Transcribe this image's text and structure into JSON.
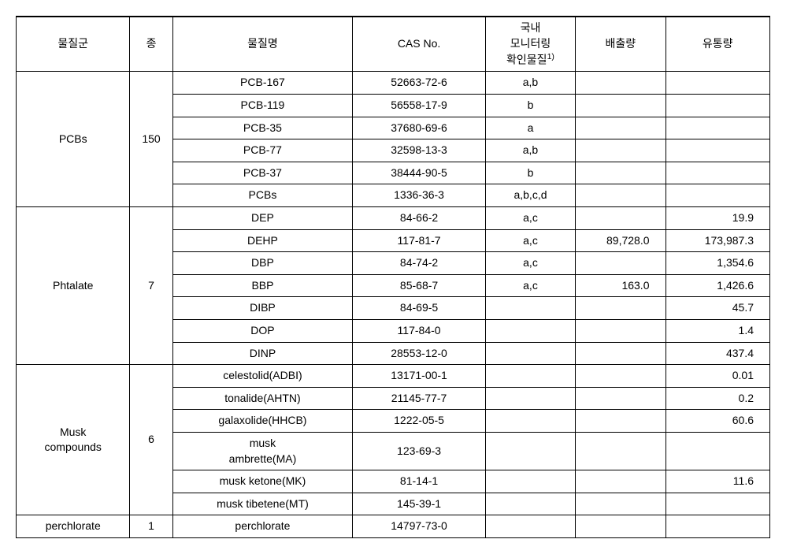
{
  "headers": {
    "group": "물질군",
    "species": "종",
    "name": "물질명",
    "cas": "CAS No.",
    "monitor_line1": "국내",
    "monitor_line2": "모니터링",
    "monitor_line3": "확인물질",
    "monitor_sup": "1)",
    "emission": "배출량",
    "distribution": "유통량"
  },
  "groups": [
    {
      "label": "PCBs",
      "species": "150",
      "rows": [
        {
          "name": "PCB-167",
          "cas": "52663-72-6",
          "monitor": "a,b",
          "emission": "",
          "dist": ""
        },
        {
          "name": "PCB-119",
          "cas": "56558-17-9",
          "monitor": "b",
          "emission": "",
          "dist": ""
        },
        {
          "name": "PCB-35",
          "cas": "37680-69-6",
          "monitor": "a",
          "emission": "",
          "dist": ""
        },
        {
          "name": "PCB-77",
          "cas": "32598-13-3",
          "monitor": "a,b",
          "emission": "",
          "dist": ""
        },
        {
          "name": "PCB-37",
          "cas": "38444-90-5",
          "monitor": "b",
          "emission": "",
          "dist": ""
        },
        {
          "name": "PCBs",
          "cas": "1336-36-3",
          "monitor": "a,b,c,d",
          "emission": "",
          "dist": ""
        }
      ]
    },
    {
      "label": "Phtalate",
      "species": "7",
      "rows": [
        {
          "name": "DEP",
          "cas": "84-66-2",
          "monitor": "a,c",
          "emission": "",
          "dist": "19.9"
        },
        {
          "name": "DEHP",
          "cas": "117-81-7",
          "monitor": "a,c",
          "emission": "89,728.0",
          "dist": "173,987.3"
        },
        {
          "name": "DBP",
          "cas": "84-74-2",
          "monitor": "a,c",
          "emission": "",
          "dist": "1,354.6"
        },
        {
          "name": "BBP",
          "cas": "85-68-7",
          "monitor": "a,c",
          "emission": "163.0",
          "dist": "1,426.6"
        },
        {
          "name": "DIBP",
          "cas": "84-69-5",
          "monitor": "",
          "emission": "",
          "dist": "45.7"
        },
        {
          "name": "DOP",
          "cas": "117-84-0",
          "monitor": "",
          "emission": "",
          "dist": "1.4"
        },
        {
          "name": "DINP",
          "cas": "28553-12-0",
          "monitor": "",
          "emission": "",
          "dist": "437.4"
        }
      ]
    },
    {
      "label_line1": "Musk",
      "label_line2": "compounds",
      "species": "6",
      "rows": [
        {
          "name": "celestolid(ADBI)",
          "cas": "13171-00-1",
          "monitor": "",
          "emission": "",
          "dist": "0.01"
        },
        {
          "name": "tonalide(AHTN)",
          "cas": "21145-77-7",
          "monitor": "",
          "emission": "",
          "dist": "0.2"
        },
        {
          "name": "galaxolide(HHCB)",
          "cas": "1222-05-5",
          "monitor": "",
          "emission": "",
          "dist": "60.6"
        },
        {
          "name_line1": "musk",
          "name_line2": "ambrette(MA)",
          "cas": "123-69-3",
          "monitor": "",
          "emission": "",
          "dist": ""
        },
        {
          "name": "musk ketone(MK)",
          "cas": "81-14-1",
          "monitor": "",
          "emission": "",
          "dist": "11.6"
        },
        {
          "name": "musk tibetene(MT)",
          "cas": "145-39-1",
          "monitor": "",
          "emission": "",
          "dist": ""
        }
      ]
    },
    {
      "label": "perchlorate",
      "species": "1",
      "rows": [
        {
          "name": "perchlorate",
          "cas": "14797-73-0",
          "monitor": "",
          "emission": "",
          "dist": ""
        }
      ]
    }
  ]
}
